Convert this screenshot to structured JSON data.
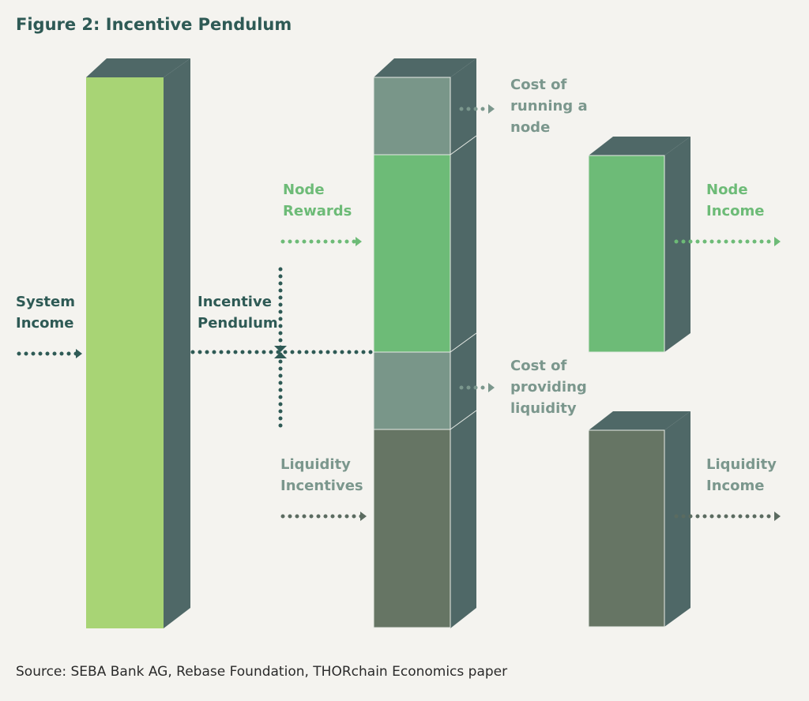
{
  "title": "Figure 2: Incentive Pendulum",
  "source": "Source: SEBA Bank AG, Rebase Foundation, THORchain Economics paper",
  "labels": {
    "system_income": [
      "System",
      "Income"
    ],
    "incentive_pendulum": [
      "Incentive",
      "Pendulum"
    ],
    "node_rewards": [
      "Node",
      "Rewards"
    ],
    "liquidity_incentives": [
      "Liquidity",
      "Incentives"
    ],
    "cost_running_node": [
      "Cost of",
      "running a",
      "node"
    ],
    "cost_providing_liquidity": [
      "Cost of",
      "providing",
      "liquidity"
    ],
    "node_income": [
      "Node",
      "Income"
    ],
    "liquidity_income": [
      "Liquidity",
      "Income"
    ]
  },
  "colors": {
    "background": "#f4f3ef",
    "dark_teal": "#2e5a55",
    "side_face": "#4f6867",
    "light_green": "#a8d475",
    "mid_green": "#6dbb77",
    "grey_green": "#799689",
    "olive_grey": "#667564"
  }
}
